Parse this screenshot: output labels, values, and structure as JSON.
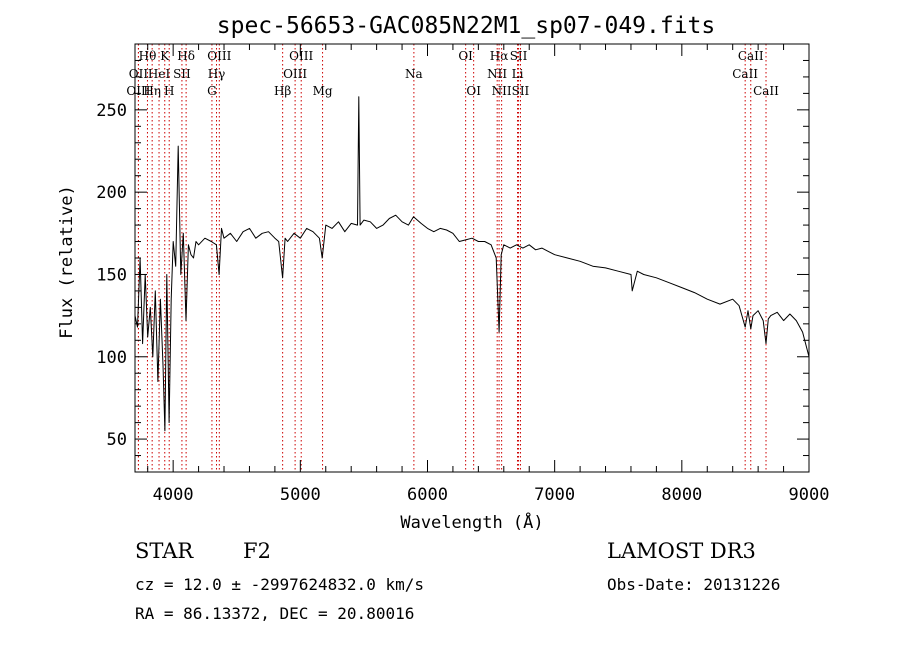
{
  "chart_data": {
    "type": "line",
    "title": "spec-56653-GAC085N22M1_sp07-049.fits",
    "xlabel": "Wavelength (Å)",
    "ylabel": "Flux (relative)",
    "xlim": [
      3700,
      9000
    ],
    "ylim": [
      30,
      290
    ],
    "xticks": [
      4000,
      5000,
      6000,
      7000,
      8000,
      9000
    ],
    "yticks": [
      50,
      100,
      150,
      200,
      250
    ],
    "grid": false,
    "series": [
      {
        "name": "flux",
        "x": [
          3700,
          3720,
          3740,
          3760,
          3780,
          3800,
          3820,
          3840,
          3860,
          3880,
          3900,
          3920,
          3935,
          3950,
          3968,
          3985,
          4000,
          4020,
          4040,
          4060,
          4080,
          4101,
          4120,
          4140,
          4160,
          4180,
          4200,
          4250,
          4300,
          4340,
          4361,
          4380,
          4400,
          4450,
          4500,
          4550,
          4600,
          4650,
          4700,
          4750,
          4800,
          4830,
          4861,
          4880,
          4900,
          4950,
          5000,
          5050,
          5100,
          5150,
          5172,
          5200,
          5250,
          5300,
          5350,
          5400,
          5450,
          5460,
          5470,
          5500,
          5550,
          5600,
          5650,
          5700,
          5750,
          5800,
          5850,
          5890,
          5950,
          6000,
          6050,
          6100,
          6150,
          6200,
          6250,
          6300,
          6350,
          6400,
          6450,
          6500,
          6540,
          6563,
          6580,
          6600,
          6650,
          6700,
          6750,
          6800,
          6850,
          6900,
          6950,
          7000,
          7100,
          7200,
          7300,
          7400,
          7500,
          7600,
          7610,
          7650,
          7700,
          7800,
          7900,
          8000,
          8100,
          8200,
          8300,
          8400,
          8450,
          8498,
          8520,
          8542,
          8560,
          8600,
          8640,
          8662,
          8680,
          8700,
          8750,
          8800,
          8850,
          8900,
          8950,
          9000
        ],
        "values": [
          125,
          118,
          160,
          108,
          150,
          112,
          130,
          100,
          140,
          85,
          135,
          95,
          55,
          150,
          60,
          135,
          170,
          155,
          228,
          150,
          175,
          122,
          168,
          162,
          160,
          170,
          168,
          172,
          170,
          168,
          150,
          178,
          172,
          175,
          170,
          176,
          178,
          172,
          175,
          176,
          172,
          170,
          148,
          172,
          170,
          175,
          172,
          178,
          176,
          172,
          160,
          180,
          178,
          182,
          176,
          181,
          180,
          258,
          180,
          183,
          182,
          178,
          180,
          184,
          186,
          182,
          180,
          185,
          181,
          178,
          176,
          178,
          177,
          175,
          170,
          171,
          172,
          170,
          170,
          168,
          160,
          115,
          162,
          168,
          166,
          168,
          166,
          168,
          165,
          166,
          164,
          162,
          160,
          158,
          155,
          154,
          152,
          150,
          140,
          152,
          150,
          148,
          145,
          142,
          139,
          135,
          132,
          135,
          131,
          118,
          128,
          117,
          125,
          128,
          122,
          108,
          123,
          125,
          127,
          122,
          126,
          122,
          115,
          100
        ]
      }
    ],
    "lines": [
      {
        "label": "Hθ",
        "x": 3798,
        "row": 0
      },
      {
        "label": "OII",
        "x": 3727,
        "row": 1
      },
      {
        "label": "OIII",
        "x": 3727,
        "row": 2
      },
      {
        "label": "HeI",
        "x": 3889,
        "row": 1
      },
      {
        "label": "Hη",
        "x": 3835,
        "row": 2
      },
      {
        "label": "K",
        "x": 3934,
        "row": 0
      },
      {
        "label": "SII",
        "x": 4069,
        "row": 1
      },
      {
        "label": "H",
        "x": 3969,
        "row": 2
      },
      {
        "label": "Hδ",
        "x": 4102,
        "row": 0
      },
      {
        "label": "OIII",
        "x": 4363,
        "row": 0
      },
      {
        "label": "Hγ",
        "x": 4341,
        "row": 1
      },
      {
        "label": "G",
        "x": 4305,
        "row": 2
      },
      {
        "label": "OIII",
        "x": 5007,
        "row": 0
      },
      {
        "label": "OIII",
        "x": 4959,
        "row": 1
      },
      {
        "label": "Hβ",
        "x": 4861,
        "row": 2
      },
      {
        "label": "Mg",
        "x": 5175,
        "row": 2
      },
      {
        "label": "Na",
        "x": 5893,
        "row": 1
      },
      {
        "label": "OI",
        "x": 6300,
        "row": 0
      },
      {
        "label": "OI",
        "x": 6363,
        "row": 2
      },
      {
        "label": "Hα",
        "x": 6563,
        "row": 0
      },
      {
        "label": "SII",
        "x": 6716,
        "row": 0
      },
      {
        "label": "NII",
        "x": 6548,
        "row": 1
      },
      {
        "label": "Li",
        "x": 6708,
        "row": 1
      },
      {
        "label": "NII",
        "x": 6583,
        "row": 2
      },
      {
        "label": "SII",
        "x": 6731,
        "row": 2
      },
      {
        "label": "CaII",
        "x": 8542,
        "row": 0
      },
      {
        "label": "CaII",
        "x": 8498,
        "row": 1
      },
      {
        "label": "CaII",
        "x": 8662,
        "row": 2
      }
    ]
  },
  "info": {
    "object_class": "STAR",
    "subclass": "F2",
    "survey": "LAMOST DR3",
    "cz": "cz = 12.0 ± -2997624832.0 km/s",
    "obs_date": "Obs-Date: 20131226",
    "coords": "RA =  86.13372, DEC =  20.80016"
  },
  "colors": {
    "line_marker": "#cc0000",
    "spectrum": "#000000",
    "axes": "#000000"
  }
}
